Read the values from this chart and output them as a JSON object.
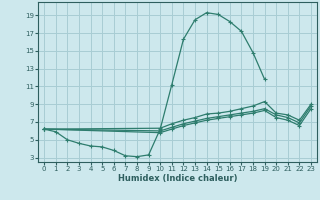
{
  "title": "",
  "xlabel": "Humidex (Indice chaleur)",
  "ylabel": "",
  "xlim": [
    -0.5,
    23.5
  ],
  "ylim": [
    2.5,
    20.5
  ],
  "xticks": [
    0,
    1,
    2,
    3,
    4,
    5,
    6,
    7,
    8,
    9,
    10,
    11,
    12,
    13,
    14,
    15,
    16,
    17,
    18,
    19,
    20,
    21,
    22,
    23
  ],
  "yticks": [
    3,
    5,
    7,
    9,
    11,
    13,
    15,
    17,
    19
  ],
  "bg_color": "#cde8ed",
  "grid_color": "#a8cdd4",
  "line_color": "#2e7d6e",
  "tick_color": "#2e5f5f",
  "lines": [
    {
      "x": [
        0,
        1,
        2,
        3,
        4,
        5,
        6,
        7,
        8,
        9,
        10,
        11,
        12,
        13,
        14,
        15,
        16,
        17,
        18,
        19
      ],
      "y": [
        6.2,
        5.9,
        5.0,
        4.6,
        4.3,
        4.2,
        3.8,
        3.2,
        3.1,
        3.3,
        6.2,
        11.2,
        16.3,
        18.5,
        19.3,
        19.1,
        18.3,
        17.2,
        14.8,
        11.8
      ]
    },
    {
      "x": [
        0,
        10,
        11,
        12,
        13,
        14,
        15,
        16,
        17,
        18,
        19,
        20,
        21,
        22,
        23
      ],
      "y": [
        6.2,
        6.3,
        6.8,
        7.2,
        7.5,
        7.9,
        8.0,
        8.2,
        8.5,
        8.8,
        9.3,
        8.0,
        7.8,
        7.2,
        9.0
      ]
    },
    {
      "x": [
        0,
        10,
        11,
        12,
        13,
        14,
        15,
        16,
        17,
        18,
        19,
        20,
        21,
        22,
        23
      ],
      "y": [
        6.2,
        6.0,
        6.4,
        6.8,
        7.1,
        7.4,
        7.6,
        7.8,
        8.0,
        8.2,
        8.5,
        7.8,
        7.5,
        6.9,
        8.8
      ]
    },
    {
      "x": [
        0,
        10,
        11,
        12,
        13,
        14,
        15,
        16,
        17,
        18,
        19,
        20,
        21,
        22,
        23
      ],
      "y": [
        6.2,
        5.8,
        6.2,
        6.6,
        6.9,
        7.2,
        7.4,
        7.6,
        7.8,
        8.0,
        8.3,
        7.5,
        7.2,
        6.6,
        8.5
      ]
    }
  ]
}
